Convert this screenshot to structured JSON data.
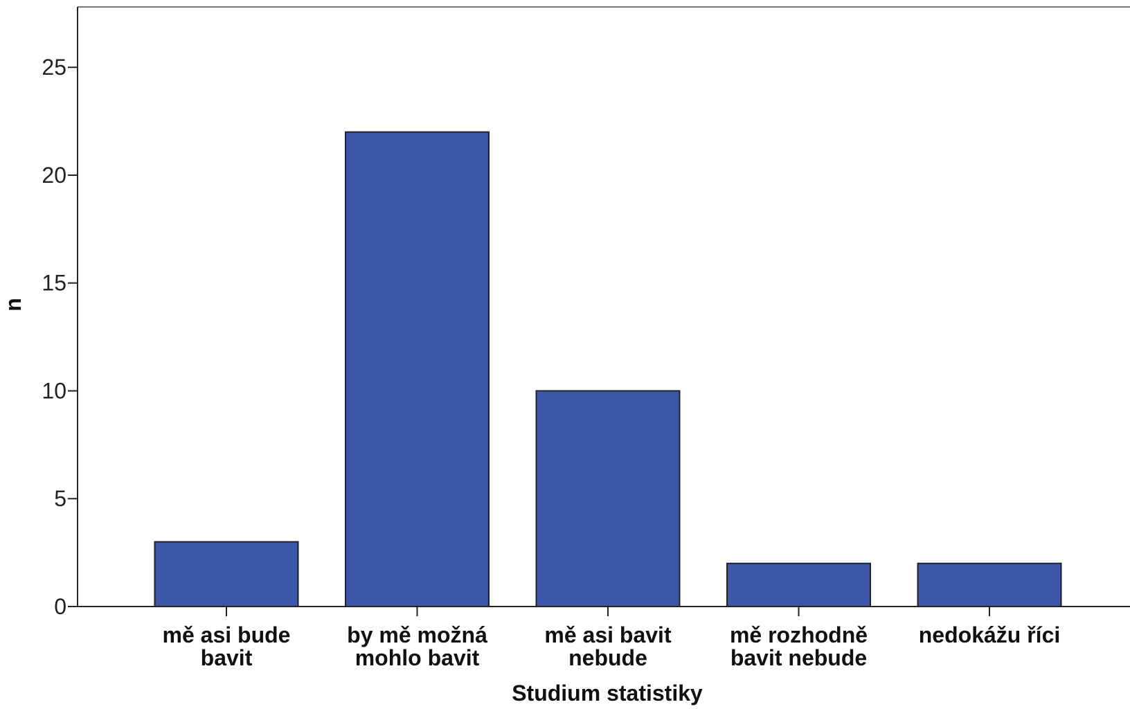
{
  "chart_data": {
    "type": "bar",
    "categories": [
      [
        "mě asi bude",
        "bavit"
      ],
      [
        "by mě možná",
        "mohlo bavit"
      ],
      [
        "mě asi bavit",
        "nebude"
      ],
      [
        "mě rozhodně",
        "bavit nebude"
      ],
      [
        "nedokážu říci"
      ]
    ],
    "values": [
      3,
      22,
      10,
      2,
      2
    ],
    "xlabel": "Studium statistiky",
    "ylabel": "n",
    "ylim": [
      0,
      27.8
    ],
    "yticks": [
      0,
      5,
      10,
      15,
      20,
      25
    ],
    "grid": false,
    "legend": "none",
    "colors": {
      "bar_fill": "#3d57a8",
      "bar_stroke": "#222222",
      "axis": "#222222",
      "frame": "#777777"
    }
  }
}
